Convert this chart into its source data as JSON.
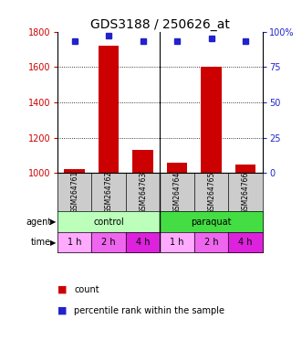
{
  "title": "GDS3188 / 250626_at",
  "samples": [
    "GSM264761",
    "GSM264762",
    "GSM264763",
    "GSM264764",
    "GSM264765",
    "GSM264766"
  ],
  "counts": [
    1020,
    1720,
    1130,
    1060,
    1600,
    1050
  ],
  "percentile_ranks": [
    93,
    97,
    93,
    93,
    95,
    93
  ],
  "ylim_left": [
    1000,
    1800
  ],
  "ylim_right": [
    0,
    100
  ],
  "yticks_left": [
    1000,
    1200,
    1400,
    1600,
    1800
  ],
  "yticks_right": [
    0,
    25,
    50,
    75,
    100
  ],
  "bar_color": "#cc0000",
  "dot_color": "#2222cc",
  "agent_control_color": "#bbffbb",
  "agent_paraquat_color": "#44dd44",
  "time_colors": [
    "#ffaaff",
    "#ee66ee",
    "#dd22dd",
    "#ffaaff",
    "#ee66ee",
    "#dd22dd"
  ],
  "time_labels": [
    "1 h",
    "2 h",
    "4 h",
    "1 h",
    "2 h",
    "4 h"
  ],
  "sample_bg_color": "#cccccc",
  "background_color": "#ffffff",
  "label_fontsize": 7,
  "title_fontsize": 10
}
